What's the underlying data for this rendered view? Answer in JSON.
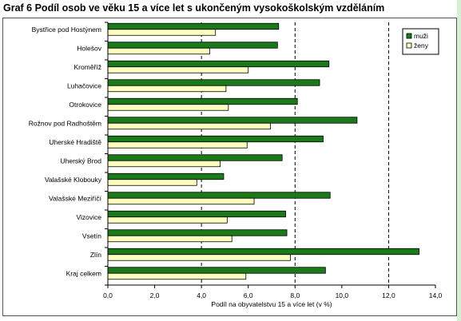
{
  "title": "Graf 6  Podíl osob ve věku 15 a více let s ukončeným vysokoškolským vzděláním",
  "chart_data": {
    "type": "bar",
    "orientation": "horizontal",
    "title": "Graf 6  Podíl osob ve věku 15 a více let s ukončeným vysokoškolským vzděláním",
    "xlabel": "Podíl na obyvatelstvu 15 a více let (v %)",
    "ylabel": "",
    "xlim": [
      0,
      14
    ],
    "xticks": [
      "0,0",
      "2,0",
      "4,0",
      "6,0",
      "8,0",
      "10,0",
      "12,0",
      "14,0"
    ],
    "grid": "vertical dashed",
    "legend_position": "top-right",
    "categories": [
      "Bystřice pod Hostýnem",
      "Holešov",
      "Kroměříž",
      "Luhačovice",
      "Otrokovice",
      "Rožnov pod Radhoštěm",
      "Uherské Hradiště",
      "Uherský Brod",
      "Valašské Klobouky",
      "Valašské Meziříčí",
      "Vizovice",
      "Vsetín",
      "Zlín",
      "Kraj celkem"
    ],
    "series": [
      {
        "name": "muži",
        "color": "#1a7a1a",
        "values": [
          7.3,
          7.25,
          9.45,
          9.05,
          8.1,
          10.65,
          9.2,
          7.45,
          4.95,
          9.5,
          7.6,
          7.65,
          13.3,
          9.3
        ]
      },
      {
        "name": "ženy",
        "color": "#ffffc0",
        "values": [
          4.6,
          4.35,
          6.0,
          5.05,
          5.15,
          6.95,
          5.95,
          4.8,
          3.8,
          6.25,
          5.1,
          5.3,
          7.8,
          5.9
        ]
      }
    ]
  }
}
